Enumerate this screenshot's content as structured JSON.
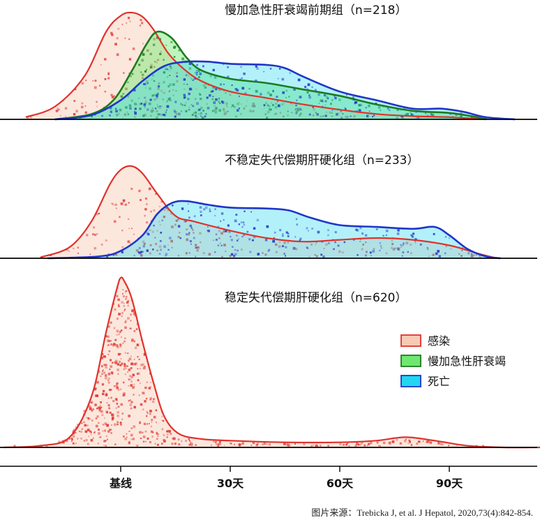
{
  "chart_data": {
    "type": "area",
    "x_ticks": [
      {
        "label": "基线",
        "x": 0
      },
      {
        "label": "30天",
        "x": 30
      },
      {
        "label": "60天",
        "x": 60
      },
      {
        "label": "90天",
        "x": 90
      }
    ],
    "xlim": [
      -32,
      115
    ],
    "legend_position": "right",
    "legend": [
      {
        "key": "infection",
        "label": "感染",
        "fill": "#f9c9b3",
        "stroke": "#e0322d"
      },
      {
        "key": "aclf",
        "label": "慢加急性肝衰竭",
        "fill": "#6ee86e",
        "stroke": "#1f7a1f"
      },
      {
        "key": "death",
        "label": "死亡",
        "fill": "#22d6f0",
        "stroke": "#2035c8"
      }
    ],
    "panels": [
      {
        "title": "慢加急性肝衰竭前期组（n=218）",
        "series": [
          {
            "key": "infection",
            "x": [
              -26,
              -18,
              -10,
              -4,
              0,
              3,
              6,
              9,
              13,
              17,
              22,
              30,
              40,
              50,
              60,
              70,
              80,
              90,
              100
            ],
            "y": [
              0.02,
              0.12,
              0.4,
              0.82,
              0.97,
              1.0,
              0.96,
              0.84,
              0.62,
              0.48,
              0.36,
              0.26,
              0.2,
              0.14,
              0.09,
              0.05,
              0.03,
              0.02,
              0.0
            ]
          },
          {
            "key": "aclf",
            "x": [
              -18,
              -8,
              -2,
              3,
              7,
              10,
              14,
              18,
              22,
              30,
              40,
              50,
              60,
              70,
              80,
              90,
              96,
              100
            ],
            "y": [
              0.0,
              0.05,
              0.18,
              0.45,
              0.7,
              0.82,
              0.76,
              0.58,
              0.46,
              0.38,
              0.34,
              0.28,
              0.22,
              0.14,
              0.08,
              0.06,
              0.03,
              0.0
            ]
          },
          {
            "key": "death",
            "x": [
              -18,
              -8,
              0,
              6,
              12,
              18,
              24,
              30,
              40,
              45,
              50,
              60,
              70,
              80,
              88,
              94,
              100,
              108
            ],
            "y": [
              0.0,
              0.04,
              0.18,
              0.36,
              0.5,
              0.54,
              0.54,
              0.52,
              0.51,
              0.48,
              0.4,
              0.26,
              0.18,
              0.1,
              0.1,
              0.07,
              0.02,
              0.0
            ]
          }
        ]
      },
      {
        "title": "不稳定失代偿期肝硬化组（n=233）",
        "series": [
          {
            "key": "infection",
            "x": [
              -22,
              -14,
              -8,
              -3,
              0,
              3,
              6,
              10,
              15,
              20,
              30,
              40,
              50,
              60,
              70,
              80,
              90,
              98,
              103
            ],
            "y": [
              0.01,
              0.12,
              0.4,
              0.8,
              0.96,
              1.0,
              0.92,
              0.7,
              0.46,
              0.4,
              0.3,
              0.22,
              0.18,
              0.2,
              0.22,
              0.2,
              0.14,
              0.05,
              0.0
            ]
          },
          {
            "key": "death",
            "x": [
              -20,
              -6,
              0,
              6,
              10,
              14,
              18,
              24,
              30,
              40,
              46,
              52,
              60,
              70,
              80,
              86,
              90,
              95,
              100,
              104
            ],
            "y": [
              0.0,
              0.02,
              0.08,
              0.25,
              0.48,
              0.6,
              0.62,
              0.58,
              0.55,
              0.54,
              0.52,
              0.44,
              0.36,
              0.34,
              0.32,
              0.34,
              0.25,
              0.1,
              0.02,
              0.0
            ]
          }
        ]
      },
      {
        "title": "稳定失代偿期肝硬化组（n=620）",
        "series": [
          {
            "key": "infection",
            "x": [
              -32,
              -22,
              -14,
              -8,
              -4,
              -1,
              0,
              1,
              3,
              6,
              9,
              12,
              16,
              22,
              30,
              45,
              60,
              70,
              78,
              86,
              95,
              105,
              115
            ],
            "y": [
              0.0,
              0.01,
              0.06,
              0.3,
              0.68,
              0.94,
              1.0,
              0.98,
              0.88,
              0.62,
              0.38,
              0.18,
              0.08,
              0.05,
              0.04,
              0.03,
              0.03,
              0.04,
              0.06,
              0.04,
              0.01,
              0.0,
              0.0
            ]
          }
        ]
      }
    ]
  },
  "source_note": "图片来源：Trebicka J,  et al.  J Hepatol, 2020,73(4):842-854."
}
